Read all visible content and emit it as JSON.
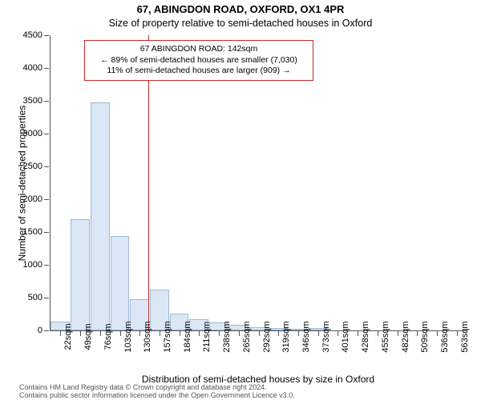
{
  "title_line1": "67, ABINGDON ROAD, OXFORD, OX1 4PR",
  "title_line2": "Size of property relative to semi-detached houses in Oxford",
  "y_axis_label": "Number of semi-detached properties",
  "x_axis_label": "Distribution of semi-detached houses by size in Oxford",
  "credit_line1": "Contains HM Land Registry data © Crown copyright and database right 2024.",
  "credit_line2": "Contains public sector information licensed under the Open Government Licence v3.0.",
  "chart": {
    "type": "bar",
    "background_color": "#ffffff",
    "bar_fill_color": "#dbe7f5",
    "bar_border_color": "#9fb9d6",
    "axis_color": "#555555",
    "reference_line_color": "#c62828",
    "reference_value": 142,
    "annotation_border_color": "#c62828",
    "font_family": "Arial",
    "title_fontsize": 13,
    "label_fontsize": 12,
    "tick_fontsize": 11,
    "annotation_fontsize": 10.5,
    "ylim": [
      0,
      4500
    ],
    "ytick_step": 500,
    "x_tick_labels": [
      "22sqm",
      "49sqm",
      "76sqm",
      "103sqm",
      "130sqm",
      "157sqm",
      "184sqm",
      "211sqm",
      "238sqm",
      "265sqm",
      "292sqm",
      "319sqm",
      "346sqm",
      "373sqm",
      "401sqm",
      "428sqm",
      "455sqm",
      "482sqm",
      "509sqm",
      "536sqm",
      "563sqm"
    ],
    "bars": [
      {
        "label": "22sqm",
        "value": 140
      },
      {
        "label": "49sqm",
        "value": 1700
      },
      {
        "label": "76sqm",
        "value": 3470
      },
      {
        "label": "103sqm",
        "value": 1440
      },
      {
        "label": "130sqm",
        "value": 470
      },
      {
        "label": "157sqm",
        "value": 620
      },
      {
        "label": "184sqm",
        "value": 260
      },
      {
        "label": "211sqm",
        "value": 170
      },
      {
        "label": "238sqm",
        "value": 120
      },
      {
        "label": "265sqm",
        "value": 90
      },
      {
        "label": "292sqm",
        "value": 50
      },
      {
        "label": "319sqm",
        "value": 40
      },
      {
        "label": "346sqm",
        "value": 30
      },
      {
        "label": "373sqm",
        "value": 40
      },
      {
        "label": "401sqm",
        "value": 0
      },
      {
        "label": "428sqm",
        "value": 0
      },
      {
        "label": "455sqm",
        "value": 0
      },
      {
        "label": "482sqm",
        "value": 0
      },
      {
        "label": "509sqm",
        "value": 0
      },
      {
        "label": "536sqm",
        "value": 0
      },
      {
        "label": "563sqm",
        "value": 0
      }
    ],
    "annotation": {
      "line1": "67 ABINGDON ROAD: 142sqm",
      "line2": "← 89% of semi-detached houses are smaller (7,030)",
      "line3": "11% of semi-detached houses are larger (909) →"
    }
  }
}
